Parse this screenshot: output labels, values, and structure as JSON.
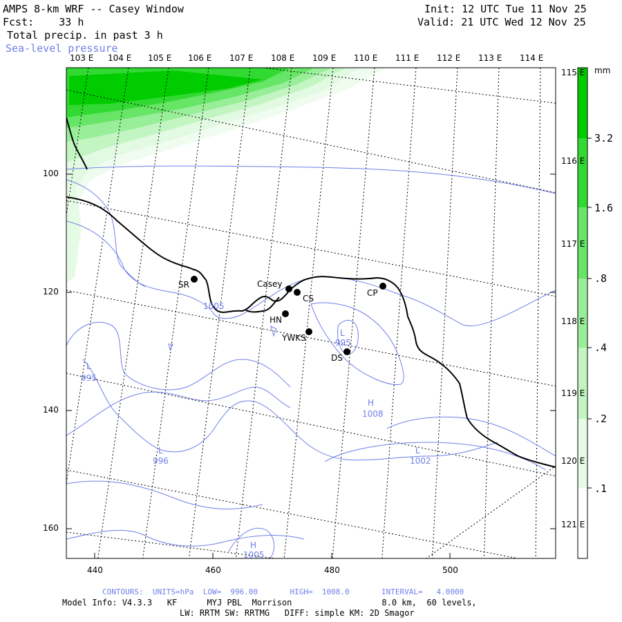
{
  "header": {
    "title": "AMPS 8-km WRF -- Casey Window",
    "forecast": "Fcst:    33 h",
    "field": "Total precip. in past 3 h",
    "overlay": "Sea-level pressure",
    "init": "Init: 12 UTC Tue 11 Nov 25",
    "valid": "Valid: 21 UTC Wed 12 Nov 25"
  },
  "top_lon_labels": [
    "103 E",
    "104 E",
    "105 E",
    "106 E",
    "107 E",
    "108 E",
    "109 E",
    "110 E",
    "111 E",
    "112 E",
    "113 E",
    "114 E"
  ],
  "right_lon_labels": [
    "115 E",
    "116 E",
    "117 E",
    "118 E",
    "119 E",
    "120 E",
    "121 E"
  ],
  "y_ticks": [
    "100",
    "120",
    "140",
    "160"
  ],
  "x_ticks": [
    "440",
    "460",
    "480",
    "500"
  ],
  "stations": [
    {
      "name": "SR"
    },
    {
      "name": "Casey"
    },
    {
      "name": "CS"
    },
    {
      "name": "HN"
    },
    {
      "name": "YWKS"
    },
    {
      "name": "DS"
    },
    {
      "name": "CP"
    }
  ],
  "pressure_labels": [
    {
      "type": "L",
      "value": "995"
    },
    {
      "type": "L",
      "value": "996"
    },
    {
      "type": "L",
      "value": "995"
    },
    {
      "type": "L",
      "value": "1002"
    },
    {
      "type": "H",
      "value": "1008"
    },
    {
      "type": "H",
      "value": "1005"
    },
    {
      "type": "",
      "value": "1005"
    }
  ],
  "colorbar": {
    "unit": "mm",
    "labels": [
      "3.2",
      "1.6",
      ".8",
      ".4",
      ".2",
      ".1"
    ],
    "colors": [
      "#00cc00",
      "#33d933",
      "#66e566",
      "#99ee99",
      "#c2f5c2",
      "#e6fbe6",
      "#ffffff"
    ]
  },
  "footer": {
    "contours": "CONTOURS:  UNITS=hPa  LOW=  996.00       HIGH=  1008.0       INTERVAL=   4.0000",
    "model_info": "Model Info: V4.3.3   KF      MYJ PBL  Morrison                  8.0 km,  60 levels,",
    "physics": "LW: RRTM SW: RRTMG   DIFF: simple KM: 2D Smagor"
  }
}
